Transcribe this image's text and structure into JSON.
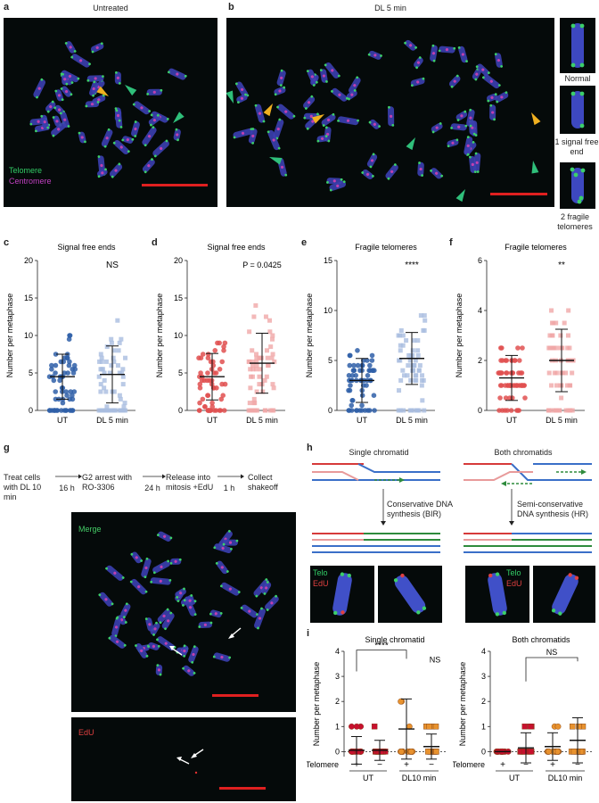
{
  "panels": {
    "a": {
      "letter": "a",
      "title": "Untreated",
      "legend_telomere": "Telomere",
      "legend_centromere": "Centromere"
    },
    "b": {
      "letter": "b",
      "title": "DL 5 min"
    },
    "insets": [
      "Normal",
      "1 signal free end",
      "2 fragile telomeres"
    ],
    "g": {
      "letter": "g",
      "steps": [
        "Treat cells with DL 10 min",
        "G2 arrest with RO-3306",
        "Release into mitosis +EdU",
        "Collect shakeoff"
      ],
      "durations": [
        "16 h",
        "24 h",
        "1 h"
      ],
      "merge_label": "Merge",
      "edu_label": "EdU"
    },
    "h": {
      "letter": "h",
      "single_title": "Single chromatid",
      "both_title": "Both chromatids",
      "single_mech": "Conservative DNA synthesis (BIR)",
      "both_mech": "Semi-conservative DNA synthesis (HR)",
      "telo": "Telo",
      "edu": "EdU"
    }
  },
  "chart_data": [
    {
      "panel": "c",
      "type": "scatter",
      "title": "Signal free ends",
      "ylabel": "Number per metaphase",
      "categories": [
        "UT",
        "DL 5 min"
      ],
      "ylim": [
        0,
        20
      ],
      "yticks": [
        0,
        5,
        10,
        15,
        20
      ],
      "means": [
        4.5,
        4.8
      ],
      "sd": [
        3.0,
        3.8
      ],
      "annotation": "NS",
      "colors": [
        "#2f5fa8",
        "#a9bde0"
      ]
    },
    {
      "panel": "d",
      "type": "scatter",
      "title": "Signal free ends",
      "ylabel": "Number per metaphase",
      "categories": [
        "UT",
        "DL 5 min"
      ],
      "ylim": [
        0,
        20
      ],
      "yticks": [
        0,
        5,
        10,
        15,
        20
      ],
      "means": [
        4.5,
        6.3
      ],
      "sd": [
        3.1,
        4.0
      ],
      "annotation": "P = 0.0425",
      "colors": [
        "#e05050",
        "#f0a8a8"
      ]
    },
    {
      "panel": "e",
      "type": "scatter",
      "title": "Fragile telomeres",
      "ylabel": "Number per metaphase",
      "categories": [
        "UT",
        "DL 5 min"
      ],
      "ylim": [
        0,
        15
      ],
      "yticks": [
        0,
        5,
        10,
        15
      ],
      "means": [
        3.0,
        5.2
      ],
      "sd": [
        2.2,
        2.6
      ],
      "annotation": "****",
      "colors": [
        "#2f5fa8",
        "#a9bde0"
      ]
    },
    {
      "panel": "f",
      "type": "scatter",
      "title": "Fragile telomeres",
      "ylabel": "Number per metaphase",
      "categories": [
        "UT",
        "DL 5 min"
      ],
      "ylim": [
        0,
        6
      ],
      "yticks": [
        0,
        2,
        4,
        6
      ],
      "means": [
        1.3,
        2.0
      ],
      "sd": [
        0.9,
        1.25
      ],
      "annotation": "**",
      "colors": [
        "#e05050",
        "#f0a8a8"
      ]
    },
    {
      "panel": "i",
      "type": "scatter",
      "title": "Single chromatid",
      "ylabel": "Number per metaphase",
      "ylim": [
        -0.2,
        4
      ],
      "yticks": [
        0,
        1,
        2,
        3,
        4
      ],
      "telomere_row": [
        "+",
        "−",
        "+",
        "−"
      ],
      "groups": [
        "UT",
        "DL10 min"
      ],
      "means": [
        0.05,
        0.05,
        0.9,
        0.2
      ],
      "sd": [
        0.55,
        0.4,
        1.2,
        0.5
      ],
      "annotations": [
        "****",
        "NS"
      ],
      "colors": [
        "#c8102e",
        "#c8102e",
        "#e8922e",
        "#e8922e"
      ]
    },
    {
      "panel": "i",
      "type": "scatter",
      "title": "Both chromatids",
      "ylabel": "Number per metaphase",
      "ylim": [
        -0.2,
        4
      ],
      "yticks": [
        0,
        1,
        2,
        3,
        4
      ],
      "telomere_row": [
        "+",
        "−",
        "+",
        "−"
      ],
      "groups": [
        "UT",
        "DL10 min"
      ],
      "means": [
        0.0,
        0.15,
        0.2,
        0.45
      ],
      "sd": [
        0.0,
        0.6,
        0.55,
        0.9
      ],
      "annotations": [
        "NS"
      ],
      "colors": [
        "#c8102e",
        "#c8102e",
        "#e8922e",
        "#e8922e"
      ]
    }
  ]
}
